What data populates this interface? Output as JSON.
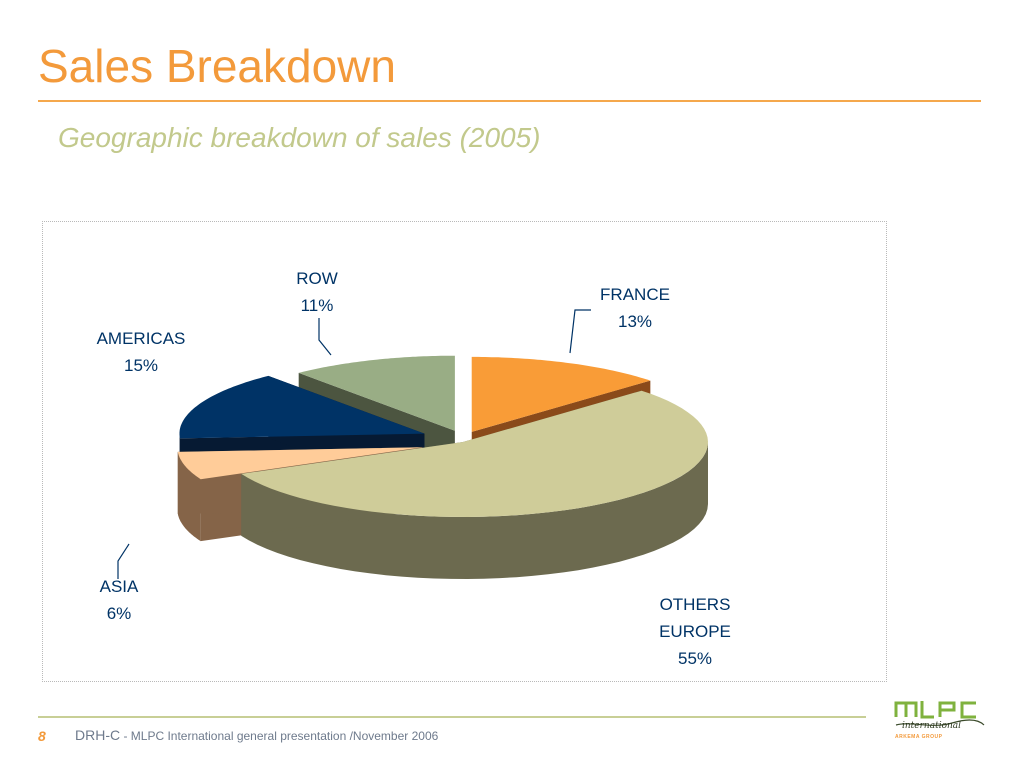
{
  "slide": {
    "title": "Sales Breakdown",
    "subtitle": "Geographic breakdown of sales (2005)"
  },
  "chart_data": {
    "type": "pie",
    "style": "3d-exploded",
    "title": "",
    "legend": "none",
    "slices": [
      {
        "label_lines": [
          "FRANCE"
        ],
        "value": 13,
        "value_label": "13%",
        "color": "#f99c37",
        "side_color": "#8a4a1a"
      },
      {
        "label_lines": [
          "OTHERS",
          "EUROPE"
        ],
        "value": 55,
        "value_label": "55%",
        "color": "#cfcc99",
        "side_color": "#6c6a4f"
      },
      {
        "label_lines": [
          "ASIA"
        ],
        "value": 6,
        "value_label": "6%",
        "color": "#ffcc99",
        "side_color": "#856448"
      },
      {
        "label_lines": [
          "AMERICAS"
        ],
        "value": 15,
        "value_label": "15%",
        "color": "#003366",
        "side_color": "#061a33"
      },
      {
        "label_lines": [
          "ROW"
        ],
        "value": 11,
        "value_label": "11%",
        "color": "#99ad85",
        "side_color": "#4c5540"
      }
    ],
    "label_color": "#003366"
  },
  "footer": {
    "page_number": "8",
    "org": "DRH-C",
    "description": " - MLPC International general presentation /November 2006",
    "logo_caption": "ARKEMA GROUP"
  },
  "colors": {
    "title": "#f39a3b",
    "subtitle": "#c2c98c",
    "logo_green": "#7fb23e"
  }
}
